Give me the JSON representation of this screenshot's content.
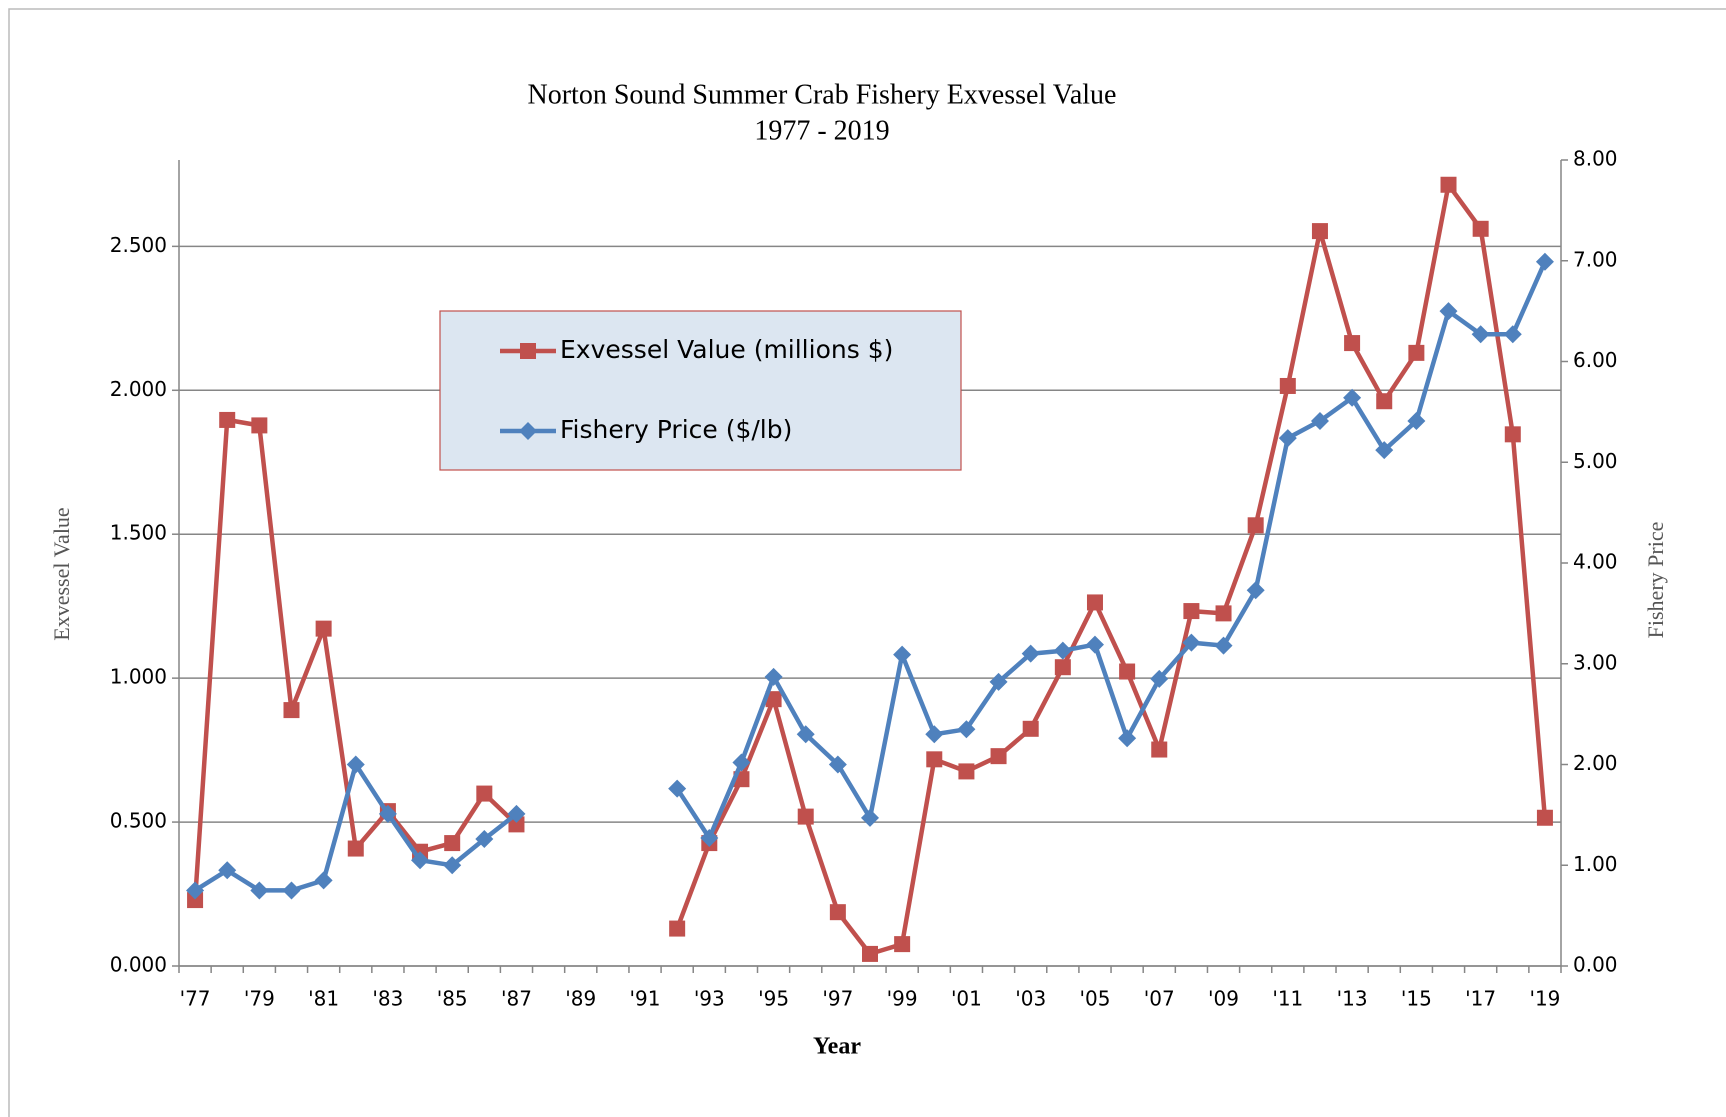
{
  "chart_data": {
    "type": "line",
    "title": "Norton Sound Summer Crab Fishery Exvessel Value",
    "subtitle": "1977 - 2019",
    "x_label": "Year",
    "y_label": "Exvessel Value",
    "y2_label": "Fishery Price",
    "categories": [
      "'77",
      null,
      "'79",
      null,
      "'81",
      null,
      "'83",
      null,
      "'85",
      null,
      "'87",
      null,
      "'89",
      null,
      "'91",
      null,
      "'93",
      null,
      "'95",
      null,
      "'97",
      null,
      "'99",
      null,
      "'01",
      null,
      "'03",
      null,
      "'05",
      null,
      "'07",
      null,
      "'09",
      null,
      "'11",
      null,
      "'13",
      null,
      "'15",
      null,
      "'17",
      null,
      "'19"
    ],
    "series": [
      {
        "name": "Exvessel Value (millions $)",
        "color": "#c0504d",
        "marker": "square",
        "values": [
          0.229,
          1.897,
          1.878,
          0.889,
          1.172,
          0.408,
          0.538,
          0.397,
          0.427,
          0.599,
          0.492,
          null,
          null,
          null,
          null,
          0.13,
          0.427,
          0.649,
          0.927,
          0.519,
          0.187,
          0.042,
          0.076,
          0.718,
          0.676,
          0.729,
          0.824,
          1.038,
          1.263,
          1.023,
          0.752,
          1.233,
          1.225,
          1.531,
          2.015,
          2.553,
          2.164,
          1.962,
          2.13,
          2.714,
          2.561,
          1.847,
          0.515
        ]
      },
      {
        "name": "Fishery Price ($/lb)",
        "color": "#4f81bd",
        "marker": "diamond",
        "axis": "y2",
        "values": [
          0.75,
          0.95,
          0.75,
          0.75,
          0.85,
          2.0,
          1.51,
          1.05,
          1.0,
          1.26,
          1.51,
          null,
          null,
          null,
          null,
          1.76,
          1.27,
          2.02,
          2.87,
          2.3,
          2.0,
          1.47,
          3.09,
          2.3,
          2.35,
          2.82,
          3.1,
          3.13,
          3.19,
          2.26,
          2.85,
          3.21,
          3.18,
          3.73,
          5.24,
          5.41,
          5.64,
          5.12,
          5.41,
          6.5,
          6.27,
          6.27,
          6.99
        ]
      }
    ],
    "ylim": [
      0,
      2.8
    ],
    "yticks": [
      {
        "value": 0,
        "label": "0.000"
      },
      {
        "value": 0.5,
        "label": "0.500"
      },
      {
        "value": 1,
        "label": "1.000"
      },
      {
        "value": 1.5,
        "label": "1.500"
      },
      {
        "value": 2,
        "label": "2.000"
      },
      {
        "value": 2.5,
        "label": "2.500"
      }
    ],
    "y2lim": [
      0,
      8
    ],
    "y2ticks": [
      {
        "value": 0,
        "label": "0.00"
      },
      {
        "value": 1,
        "label": "1.00"
      },
      {
        "value": 2,
        "label": "2.00"
      },
      {
        "value": 3,
        "label": "3.00"
      },
      {
        "value": 4,
        "label": "4.00"
      },
      {
        "value": 5,
        "label": "5.00"
      },
      {
        "value": 6,
        "label": "6.00"
      },
      {
        "value": 7,
        "label": "7.00"
      },
      {
        "value": 8,
        "label": "8.00"
      }
    ],
    "grid": true,
    "legend": "upper left"
  }
}
